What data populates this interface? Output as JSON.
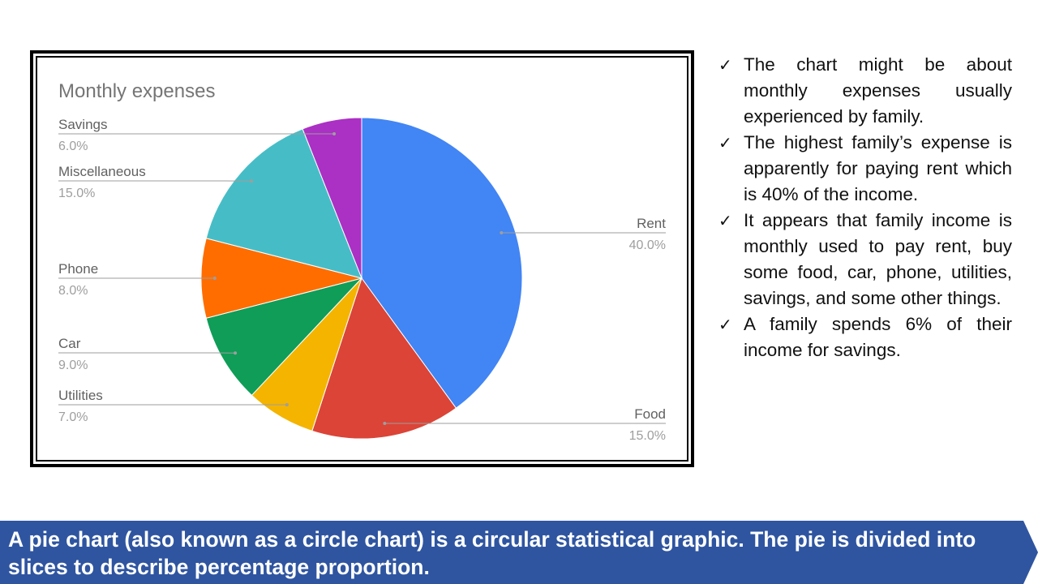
{
  "chart_data": {
    "type": "pie",
    "title": "Monthly expenses",
    "slices": [
      {
        "label": "Rent",
        "value": 40.0,
        "pct_label": "40.0%",
        "color": "#4285f4"
      },
      {
        "label": "Food",
        "value": 15.0,
        "pct_label": "15.0%",
        "color": "#db4437"
      },
      {
        "label": "Utilities",
        "value": 7.0,
        "pct_label": "7.0%",
        "color": "#f4b400"
      },
      {
        "label": "Car",
        "value": 9.0,
        "pct_label": "9.0%",
        "color": "#0f9d58"
      },
      {
        "label": "Phone",
        "value": 8.0,
        "pct_label": "8.0%",
        "color": "#ff6d01"
      },
      {
        "label": "Miscellaneous",
        "value": 15.0,
        "pct_label": "15.0%",
        "color": "#46bdc6"
      },
      {
        "label": "Savings",
        "value": 6.0,
        "pct_label": "6.0%",
        "color": "#ab30c4"
      }
    ],
    "legend": "labels beside slices"
  },
  "bullets": [
    "The chart might be about monthly expenses usually experienced by family.",
    "The highest family’s expense is apparently for paying rent which is 40% of the income.",
    "It appears that family income is monthly used to pay rent, buy some food, car, phone, utilities, savings, and some other things.",
    "A family spends 6% of their income for savings."
  ],
  "bullet_icon": "check-icon",
  "banner": {
    "text": "A pie chart (also known as a circle chart) is a circular statistical graphic. The pie is divided into slices to describe percentage proportion.",
    "color": "#2f55a0"
  }
}
